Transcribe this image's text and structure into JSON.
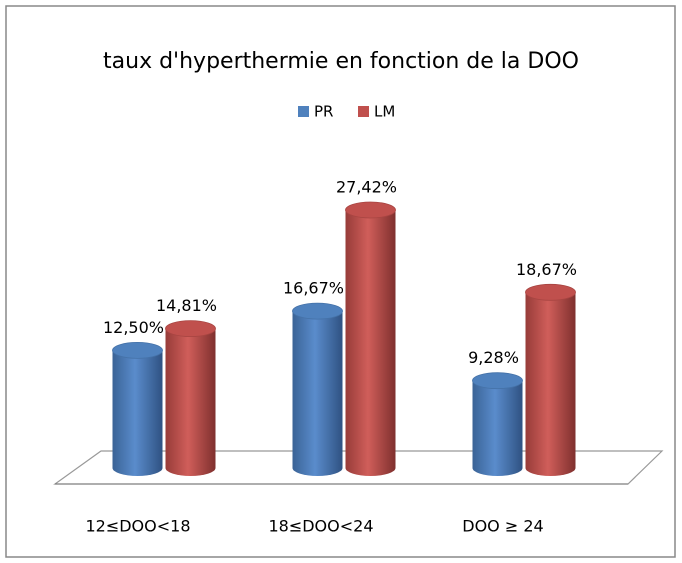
{
  "chart_data": {
    "type": "bar3d",
    "title": "taux d'hyperthermie en fonction de la DOO",
    "categories": [
      "12≤DOO<18",
      "18≤DOO<24",
      "DOO ≥ 24"
    ],
    "series": [
      {
        "name": "PR",
        "color": "#4f81bd",
        "values": [
          12.5,
          16.67,
          9.28
        ],
        "value_labels": [
          "12,50%",
          "16,67%",
          "9,28%"
        ]
      },
      {
        "name": "LM",
        "color": "#c0504d",
        "values": [
          14.81,
          27.42,
          18.67
        ],
        "value_labels": [
          "14,81%",
          "27,42%",
          "18,67%"
        ]
      }
    ],
    "legend": "top"
  }
}
